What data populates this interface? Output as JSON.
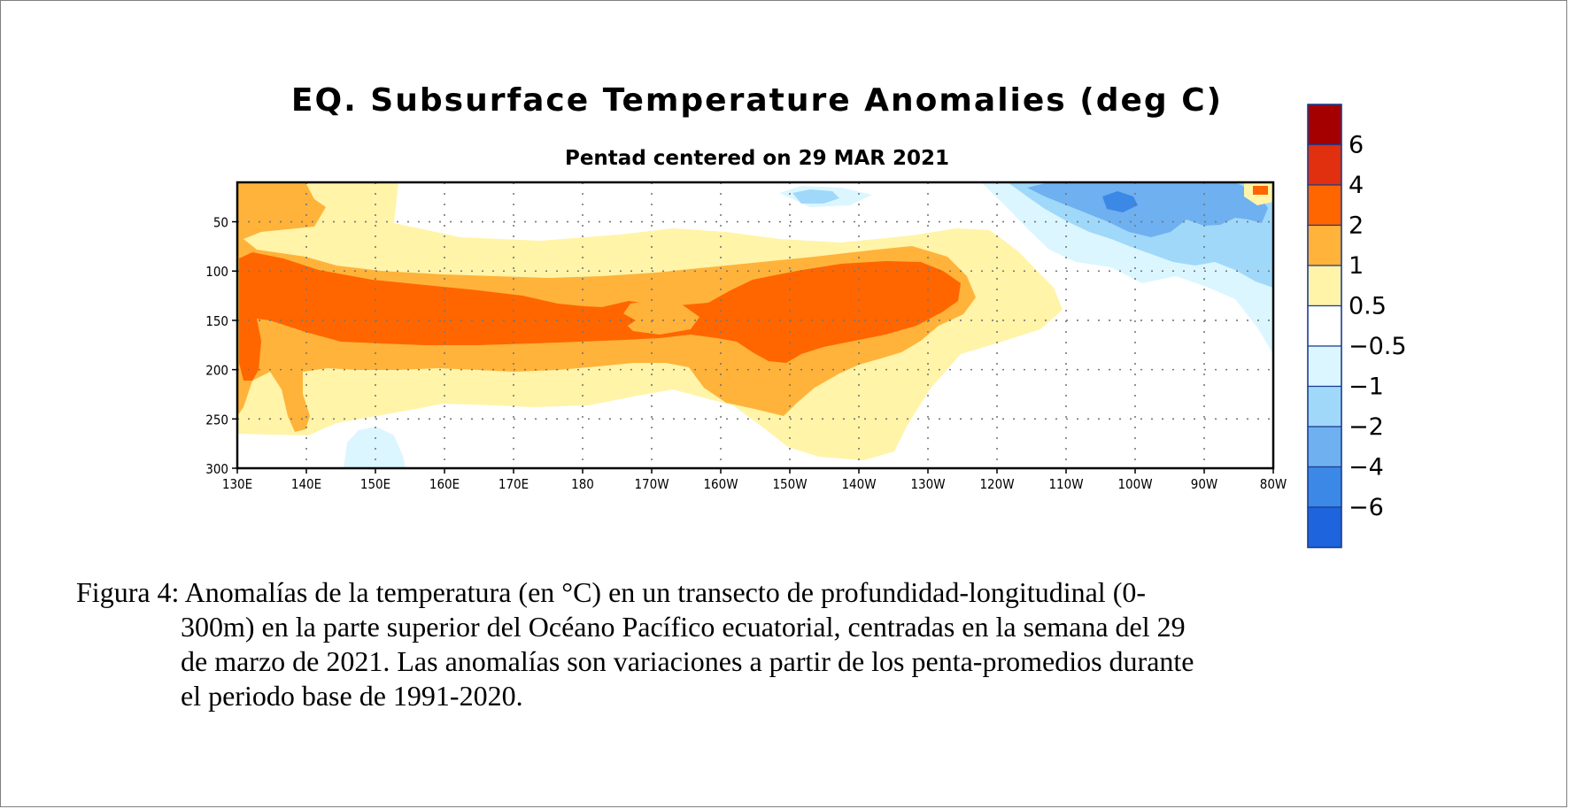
{
  "chart_data": {
    "type": "heatmap",
    "title": "EQ. Subsurface Temperature Anomalies (deg C)",
    "subtitle": "Pentad centered on 29 MAR 2021",
    "x_ticks": [
      "130E",
      "140E",
      "150E",
      "160E",
      "170E",
      "180",
      "170W",
      "160W",
      "150W",
      "140W",
      "130W",
      "120W",
      "110W",
      "100W",
      "90W",
      "80W"
    ],
    "y_ticks": [
      "50",
      "100",
      "150",
      "200",
      "250",
      "300"
    ],
    "y_range_m": [
      10,
      300
    ],
    "grid": "dotted",
    "colorbar": {
      "placement": "right",
      "labels": [
        "6",
        "4",
        "2",
        "1",
        "0.5",
        "−0.5",
        "−1",
        "−2",
        "−4",
        "−6"
      ],
      "colors_top_to_bottom": [
        "#a50000",
        "#e03010",
        "#ff6600",
        "#ffb33a",
        "#fff4a8",
        "#ffffff",
        "#dbf6ff",
        "#a0d8fa",
        "#6eb0f0",
        "#3c88e6",
        "#1e64dc"
      ]
    },
    "features": [
      {
        "class": "1 to 2",
        "color": "#ffb33a",
        "lon_range": [
          "130E",
          "120W"
        ],
        "depth_range_m": [
          10,
          280
        ]
      },
      {
        "class": "2 to 4",
        "color": "#ff6600",
        "lon_range": [
          "130E",
          "127W"
        ],
        "depth_range_m": [
          80,
          210
        ]
      },
      {
        "class": "-1 to -2",
        "color": "#a0d8fa",
        "lon_range": [
          "111W",
          "80W"
        ],
        "depth_range_m": [
          10,
          140
        ]
      },
      {
        "class": "-2 to -4",
        "color": "#6eb0f0",
        "lon_range": [
          "109W",
          "83W"
        ],
        "depth_range_m": [
          10,
          80
        ]
      },
      {
        "class": "2 to 4",
        "color": "#ff6600",
        "lon_range": [
          "82W",
          "80W"
        ],
        "depth_range_m": [
          10,
          25
        ]
      }
    ]
  },
  "caption": {
    "line1": "Figura 4: Anomalías de la temperatura (en °C) en un transecto de profundidad-longitudinal (0-",
    "line2": "300m) en la parte superior del Océano Pacífico ecuatorial, centradas en la semana del 29",
    "line3": "de marzo de 2021. Las anomalías son variaciones a partir de los penta-promedios durante",
    "line4": "el periodo base de 1991-2020."
  }
}
